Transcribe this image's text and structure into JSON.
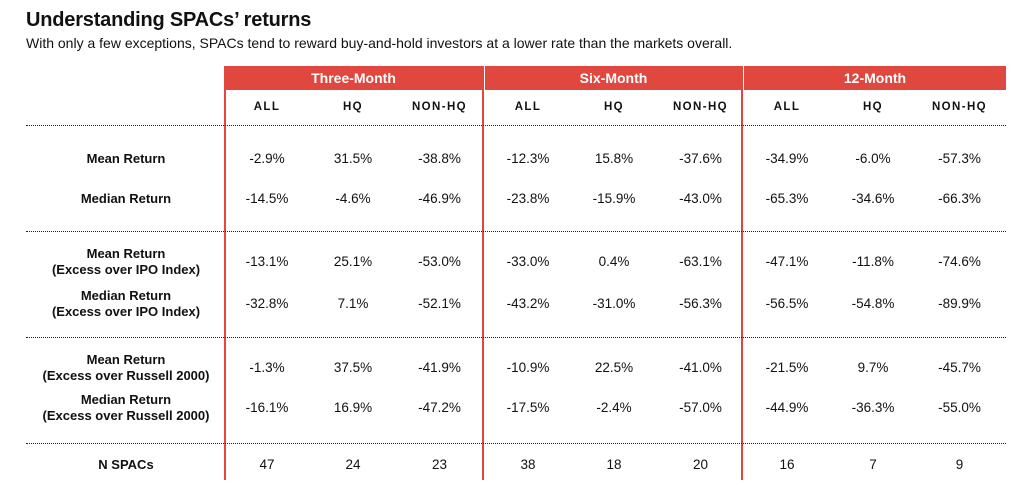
{
  "title": "Understanding SPACs’ returns",
  "subtitle": "With only a few exceptions, SPACs tend to reward buy-and-hold investors at a lower rate than the markets overall.",
  "colors": {
    "accent": "#e0473f"
  },
  "chart_data": {
    "type": "table",
    "groups": [
      "Three-Month",
      "Six-Month",
      "12-Month"
    ],
    "subcolumns": [
      "ALL",
      "HQ",
      "NON-HQ"
    ],
    "rows": [
      {
        "label_lines": [
          "Mean Return"
        ],
        "values": [
          "-2.9%",
          "31.5%",
          "-38.8%",
          "-12.3%",
          "15.8%",
          "-37.6%",
          "-34.9%",
          "-6.0%",
          "-57.3%"
        ]
      },
      {
        "label_lines": [
          "Median Return"
        ],
        "values": [
          "-14.5%",
          "-4.6%",
          "-46.9%",
          "-23.8%",
          "-15.9%",
          "-43.0%",
          "-65.3%",
          "-34.6%",
          "-66.3%"
        ]
      },
      {
        "label_lines": [
          "Mean Return",
          "(Excess over IPO Index)"
        ],
        "values": [
          "-13.1%",
          "25.1%",
          "-53.0%",
          "-33.0%",
          "0.4%",
          "-63.1%",
          "-47.1%",
          "-11.8%",
          "-74.6%"
        ]
      },
      {
        "label_lines": [
          "Median Return",
          "(Excess over IPO Index)"
        ],
        "values": [
          "-32.8%",
          "7.1%",
          "-52.1%",
          "-43.2%",
          "-31.0%",
          "-56.3%",
          "-56.5%",
          "-54.8%",
          "-89.9%"
        ]
      },
      {
        "label_lines": [
          "Mean Return",
          "(Excess over Russell 2000)"
        ],
        "values": [
          "-1.3%",
          "37.5%",
          "-41.9%",
          "-10.9%",
          "22.5%",
          "-41.0%",
          "-21.5%",
          "9.7%",
          "-45.7%"
        ]
      },
      {
        "label_lines": [
          "Median Return",
          "(Excess over Russell 2000)"
        ],
        "values": [
          "-16.1%",
          "16.9%",
          "-47.2%",
          "-17.5%",
          "-2.4%",
          "-57.0%",
          "-44.9%",
          "-36.3%",
          "-55.0%"
        ]
      },
      {
        "label_lines": [
          "N SPACs"
        ],
        "values": [
          "47",
          "24",
          "23",
          "38",
          "18",
          "20",
          "16",
          "7",
          "9"
        ]
      }
    ]
  }
}
